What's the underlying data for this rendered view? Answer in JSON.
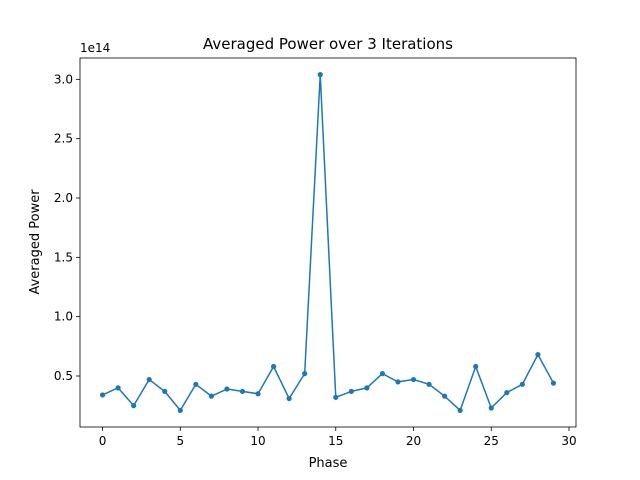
{
  "chart_data": {
    "type": "line",
    "title": "Averaged Power over 3 Iterations",
    "xlabel": "Phase",
    "ylabel": "Averaged Power",
    "y_offset_label": "1e14",
    "xlim": [
      -1.45,
      30.45
    ],
    "ylim": [
      0.07,
      3.18
    ],
    "x_ticks": [
      0,
      5,
      10,
      15,
      20,
      25,
      30
    ],
    "x_tick_labels": [
      "0",
      "5",
      "10",
      "15",
      "20",
      "25",
      "30"
    ],
    "y_ticks": [
      0.5,
      1.0,
      1.5,
      2.0,
      2.5,
      3.0
    ],
    "y_tick_labels": [
      "0.5",
      "1.0",
      "1.5",
      "2.0",
      "2.5",
      "3.0"
    ],
    "grid": false,
    "series": [
      {
        "color": "#1f77b4",
        "marker": "circle",
        "x": [
          0,
          1,
          2,
          3,
          4,
          5,
          6,
          7,
          8,
          9,
          10,
          11,
          12,
          13,
          14,
          15,
          16,
          17,
          18,
          19,
          20,
          21,
          22,
          23,
          24,
          25,
          26,
          27,
          28,
          29
        ],
        "y": [
          0.34,
          0.4,
          0.25,
          0.47,
          0.37,
          0.21,
          0.43,
          0.33,
          0.39,
          0.37,
          0.35,
          0.58,
          0.31,
          0.52,
          3.04,
          0.32,
          0.37,
          0.4,
          0.52,
          0.45,
          0.47,
          0.43,
          0.33,
          0.21,
          0.58,
          0.23,
          0.36,
          0.43,
          0.68,
          0.44
        ]
      }
    ]
  }
}
